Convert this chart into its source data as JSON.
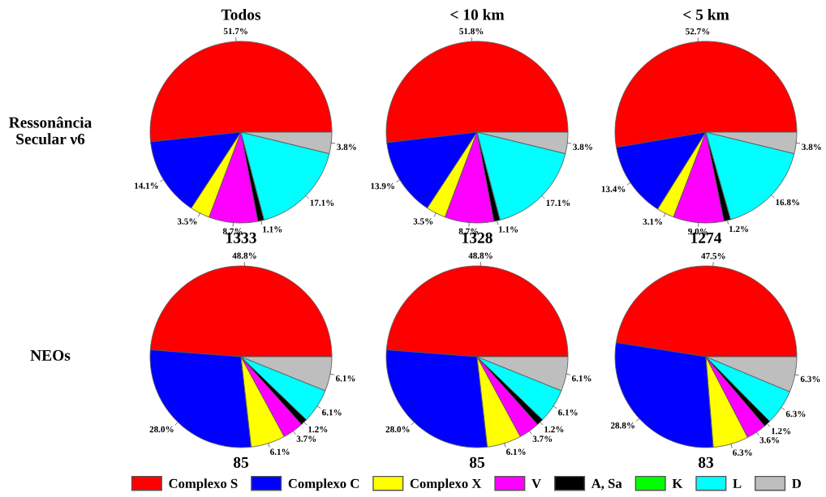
{
  "chart_data": [
    {
      "type": "pie",
      "legend": "bottom",
      "title": "Todos",
      "ylabel": "Ressonância\nSecular ν6",
      "xlabel": "1333",
      "categories": [
        "Complexo S",
        "Complexo C",
        "Complexo X",
        "V",
        "A, Sa",
        "K",
        "L",
        "D"
      ],
      "colors": [
        "#ff0000",
        "#0000ff",
        "#ffff00",
        "#ff00ff",
        "#000000",
        "#00ff00",
        "#00ffff",
        "#bebebe"
      ],
      "values": [
        51.7,
        14.1,
        3.5,
        8.7,
        1.1,
        0,
        17.1,
        3.8
      ],
      "value_labels": [
        "51.7%",
        "14.1%",
        "3.5%",
        "8.7%",
        "1.1%",
        null,
        "17.1%",
        "3.8%"
      ]
    },
    {
      "type": "pie",
      "title": "< 10 km",
      "xlabel": "1328",
      "categories": [
        null,
        null,
        null,
        null,
        null,
        null,
        null,
        null
      ],
      "colors": [
        "#ff0000",
        "#0000ff",
        "#ffff00",
        "#ff00ff",
        "#000000",
        "#00ff00",
        "#00ffff",
        "#bebebe"
      ],
      "values": [
        51.8,
        13.9,
        3.5,
        8.7,
        1.1,
        0,
        17.1,
        3.8
      ],
      "value_labels": [
        "51.8%",
        "13.9%",
        "3.5%",
        "8.7%",
        "1.1%",
        null,
        "17.1%",
        "3.8%"
      ]
    },
    {
      "type": "pie",
      "title": "< 5 km",
      "xlabel": "1274",
      "categories": [
        null,
        null,
        null,
        null,
        null,
        null,
        null,
        null
      ],
      "colors": [
        "#ff0000",
        "#0000ff",
        "#ffff00",
        "#ff00ff",
        "#000000",
        "#00ff00",
        "#00ffff",
        "#bebebe"
      ],
      "values": [
        52.7,
        13.4,
        3.1,
        9.0,
        1.2,
        0,
        16.8,
        3.8
      ],
      "value_labels": [
        "52.7%",
        "13.4%",
        "3.1%",
        "9.0%",
        "1.2%",
        null,
        "16.8%",
        "3.8%"
      ]
    },
    {
      "type": "pie",
      "ylabel": "NEOs",
      "xlabel": "85",
      "categories": [
        null,
        null,
        null,
        null,
        null,
        null,
        null,
        null
      ],
      "colors": [
        "#ff0000",
        "#0000ff",
        "#ffff00",
        "#ff00ff",
        "#000000",
        "#00ff00",
        "#00ffff",
        "#bebebe"
      ],
      "values": [
        48.8,
        28.0,
        6.1,
        3.7,
        1.2,
        0,
        6.1,
        6.1
      ],
      "value_labels": [
        "48.8%",
        "28.0%",
        "6.1%",
        "3.7%",
        "1.2%",
        null,
        "6.1%",
        "6.1%"
      ]
    },
    {
      "type": "pie",
      "xlabel": "85",
      "categories": [
        null,
        null,
        null,
        null,
        null,
        null,
        null,
        null
      ],
      "colors": [
        "#ff0000",
        "#0000ff",
        "#ffff00",
        "#ff00ff",
        "#000000",
        "#00ff00",
        "#00ffff",
        "#bebebe"
      ],
      "values": [
        48.8,
        28.0,
        6.1,
        3.7,
        1.2,
        0,
        6.1,
        6.1
      ],
      "value_labels": [
        "48.8%",
        "28.0%",
        "6.1%",
        "3.7%",
        "1.2%",
        null,
        "6.1%",
        "6.1%"
      ]
    },
    {
      "type": "pie",
      "xlabel": "83",
      "categories": [
        null,
        null,
        null,
        null,
        null,
        null,
        null,
        null
      ],
      "colors": [
        "#ff0000",
        "#0000ff",
        "#ffff00",
        "#ff00ff",
        "#000000",
        "#00ff00",
        "#00ffff",
        "#bebebe"
      ],
      "values": [
        47.5,
        28.8,
        6.3,
        3.6,
        1.2,
        0,
        6.3,
        6.3
      ],
      "value_labels": [
        "47.5%",
        "28.8%",
        "6.3%",
        "3.6%",
        "1.2%",
        null,
        "6.3%",
        "6.3%"
      ]
    }
  ]
}
